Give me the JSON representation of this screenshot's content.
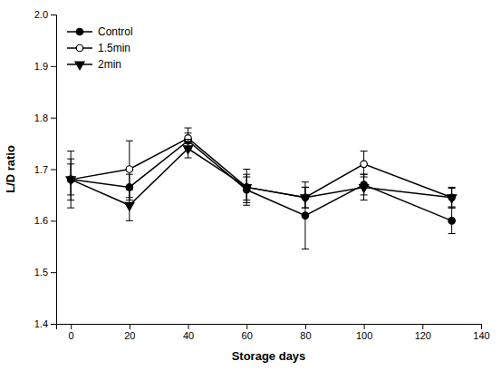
{
  "chart_data": {
    "type": "line",
    "xlabel": "Storage days",
    "ylabel": "L/D ratio",
    "x": [
      0,
      20,
      40,
      60,
      80,
      100,
      130
    ],
    "xlim": [
      -5,
      140
    ],
    "ylim": [
      1.4,
      2.0
    ],
    "xticks": [
      0,
      20,
      40,
      60,
      80,
      100,
      120,
      140
    ],
    "yticks": [
      1.4,
      1.5,
      1.6,
      1.7,
      1.8,
      1.9,
      {
        "value": 2.0,
        "label": "2.0"
      }
    ],
    "grid": false,
    "legend": "upper left",
    "series": [
      {
        "name": "Control",
        "color": "#000000",
        "marker": "circle",
        "line_style": "solid",
        "values": [
          1.68,
          1.665,
          1.755,
          1.66,
          1.61,
          1.67,
          1.6
        ],
        "errors": [
          0.055,
          0.025,
          0.015,
          0.025,
          0.065,
          0.02,
          0.025
        ]
      },
      {
        "name": "1.5min",
        "color": "#000000",
        "marker": "circle-open",
        "line_style": "solid",
        "values": [
          1.68,
          1.7,
          1.76,
          1.665,
          1.645,
          1.71,
          1.645
        ],
        "errors": [
          0.04,
          0.055,
          0.02,
          0.035,
          0.02,
          0.025,
          0.02
        ]
      },
      {
        "name": "2min",
        "color": "#000000",
        "marker": "triangle-down",
        "line_style": "solid",
        "values": [
          1.68,
          1.63,
          1.74,
          1.665,
          1.645,
          1.665,
          1.645
        ],
        "errors": [
          0.03,
          0.03,
          0.018,
          0.025,
          0.02,
          0.025,
          0.018
        ]
      }
    ]
  }
}
